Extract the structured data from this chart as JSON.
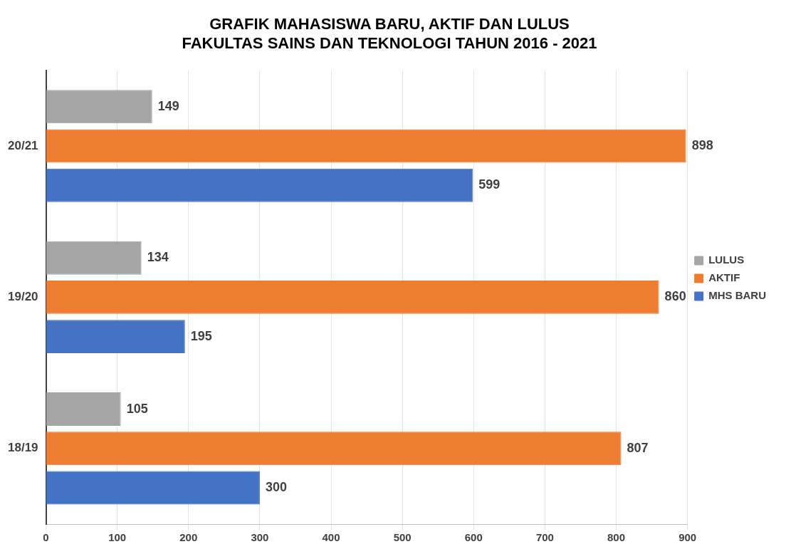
{
  "chart_data": {
    "type": "bar",
    "orientation": "horizontal",
    "title": "GRAFIK MAHASISWA BARU, AKTIF DAN LULUS\nFAKULTAS SAINS DAN TEKNOLOGI TAHUN 2016 - 2021",
    "categories": [
      "20/21",
      "19/20",
      "18/19"
    ],
    "series": [
      {
        "name": "LULUS",
        "color": "#a5a5a5",
        "values": [
          149,
          134,
          105
        ]
      },
      {
        "name": "AKTIF",
        "color": "#ed7d31",
        "values": [
          898,
          860,
          807
        ]
      },
      {
        "name": "MHS BARU",
        "color": "#4472c4",
        "values": [
          599,
          195,
          300
        ]
      }
    ],
    "xlim": [
      0,
      900
    ],
    "xticks": [
      0,
      100,
      200,
      300,
      400,
      500,
      600,
      700,
      800,
      900
    ],
    "grid": "x",
    "legend": "right",
    "data_labels": true
  }
}
